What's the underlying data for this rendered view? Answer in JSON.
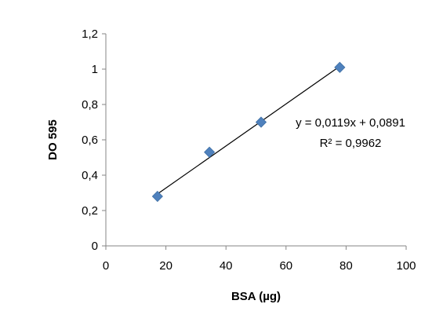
{
  "chart_data": {
    "type": "scatter",
    "title": "",
    "xlabel": "BSA (µg)",
    "ylabel": "DO 595",
    "xlim": [
      0,
      100
    ],
    "ylim": [
      0,
      1.2
    ],
    "x_ticks": [
      0,
      20,
      40,
      60,
      80,
      100
    ],
    "y_ticks": [
      0,
      0.2,
      0.4,
      0.6,
      0.8,
      1,
      1.2
    ],
    "x_tick_labels": [
      "0",
      "20",
      "40",
      "60",
      "80",
      "100"
    ],
    "y_tick_labels": [
      "0",
      "0,2",
      "0,4",
      "0,6",
      "0,8",
      "1",
      "1,2"
    ],
    "grid": false,
    "legend": "none",
    "series": [
      {
        "x": [
          17.2,
          34.5,
          51.7,
          77.9
        ],
        "y": [
          0.28,
          0.53,
          0.7,
          1.01
        ],
        "marker": "diamond",
        "color": "#4f81bd"
      }
    ],
    "trendline": {
      "type": "linear",
      "slope": 0.0119,
      "intercept": 0.0891,
      "x_range": [
        17.2,
        77.9
      ],
      "color": "#000000"
    },
    "annotations": {
      "equation": "y = 0,0119x + 0,0891",
      "r_squared": "R² = 0,9962"
    }
  }
}
